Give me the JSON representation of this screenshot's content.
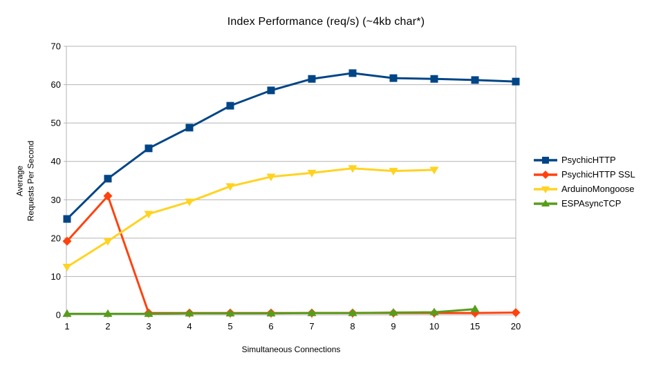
{
  "title": "Index Performance (req/s) (~4kb char*)",
  "chart_data": {
    "type": "line",
    "title": "Index Performance (req/s) (~4kb char*)",
    "xlabel": "Simultaneous Connections",
    "ylabel": "Average\nRequests Per Second",
    "categories": [
      "1",
      "2",
      "3",
      "4",
      "5",
      "6",
      "7",
      "8",
      "9",
      "10",
      "15",
      "20"
    ],
    "ylim": [
      0,
      70
    ],
    "ytick_step": 10,
    "grid": true,
    "legend_position": "right",
    "colors": {
      "grid": "#b3b3b3",
      "axis": "#b3b3b3",
      "text": "#000000"
    },
    "series": [
      {
        "name": "PsychicHTTP",
        "color": "#004586",
        "marker": "square",
        "values": [
          25.0,
          35.5,
          43.4,
          48.8,
          54.5,
          58.5,
          61.5,
          63.0,
          61.7,
          61.5,
          61.2,
          60.8
        ]
      },
      {
        "name": "PsychicHTTP SSL",
        "color": "#ff420e",
        "marker": "diamond",
        "values": [
          19.2,
          31.0,
          0.5,
          0.5,
          0.5,
          0.5,
          0.5,
          0.5,
          0.5,
          0.5,
          0.5,
          0.6
        ]
      },
      {
        "name": "ArduinoMongoose",
        "color": "#ffd320",
        "marker": "triangle-down",
        "values": [
          12.5,
          19.2,
          26.3,
          29.5,
          33.5,
          36.0,
          37.0,
          38.2,
          37.5,
          37.8,
          null,
          null
        ]
      },
      {
        "name": "ESPAsyncTCP",
        "color": "#579d1c",
        "marker": "triangle-up",
        "values": [
          0.3,
          0.3,
          0.3,
          0.4,
          0.4,
          0.4,
          0.5,
          0.5,
          0.6,
          0.7,
          1.5,
          null
        ]
      }
    ]
  }
}
